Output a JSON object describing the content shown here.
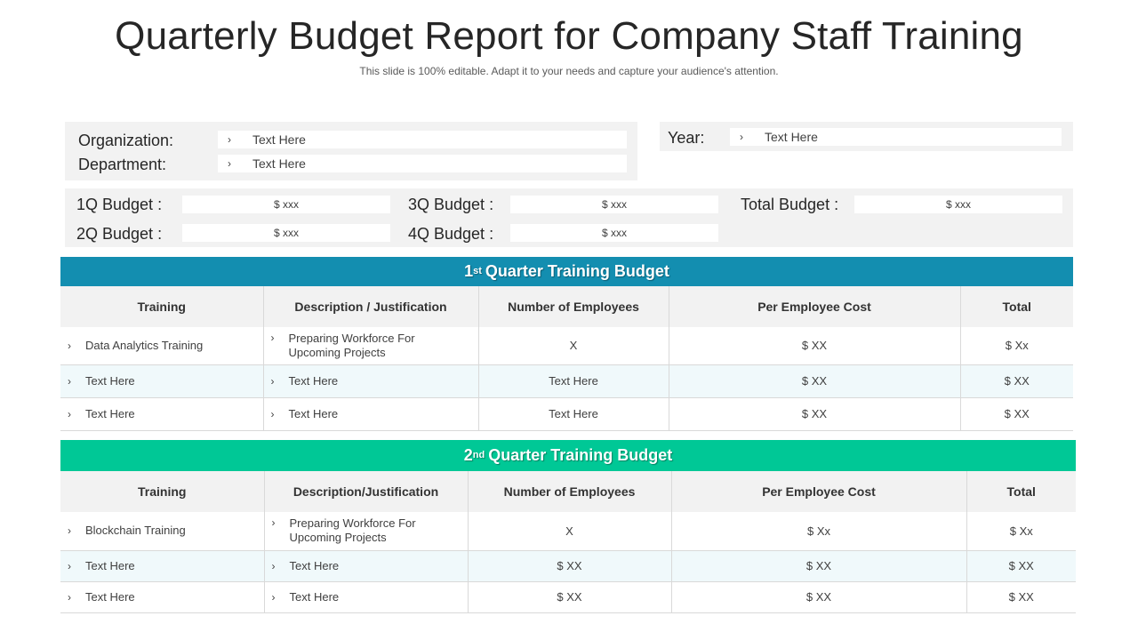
{
  "title": "Quarterly Budget Report for Company Staff Training",
  "subtitle": "This slide is 100% editable. Adapt it to your needs and capture your audience's attention.",
  "chevron": "›",
  "info": {
    "organization_label": "Organization:",
    "organization_value": "Text Here",
    "department_label": "Department:",
    "department_value": "Text Here",
    "year_label": "Year:",
    "year_value": "Text Here"
  },
  "budget": {
    "q1_label": "1Q Budget :",
    "q1_value": "$ xxx",
    "q2_label": "2Q Budget :",
    "q2_value": "$ xxx",
    "q3_label": "3Q Budget :",
    "q3_value": "$ xxx",
    "q4_label": "4Q Budget :",
    "q4_value": "$ xxx",
    "total_label": "Total Budget :",
    "total_value": "$ xxx"
  },
  "colors": {
    "q1_header": "#138eb0",
    "q2_header": "#00c896",
    "panel_bg": "#f2f2f2",
    "alt_row": "#f0f9fb"
  },
  "q1": {
    "header_num": "1",
    "header_sup": "st",
    "header_text": "Quarter Training Budget",
    "columns": [
      "Training",
      "Description / Justification",
      "Number of Employees",
      "Per Employee Cost",
      "Total"
    ],
    "rows": [
      [
        "Data Analytics Training",
        "Preparing Workforce For Upcoming Projects",
        "X",
        "$ XX",
        "$ Xx"
      ],
      [
        "Text Here",
        "Text Here",
        "Text Here",
        "$ XX",
        "$ XX"
      ],
      [
        "Text Here",
        "Text Here",
        "Text Here",
        "$ XX",
        "$ XX"
      ]
    ]
  },
  "q2": {
    "header_num": "2",
    "header_sup": "nd",
    "header_text": "Quarter Training Budget",
    "columns": [
      "Training",
      "Description/Justification",
      "Number of Employees",
      "Per Employee Cost",
      "Total"
    ],
    "rows": [
      [
        "Blockchain Training",
        "Preparing Workforce For Upcoming Projects",
        "X",
        "$ Xx",
        "$ Xx"
      ],
      [
        "Text Here",
        "Text Here",
        "$ XX",
        "$ XX",
        "$ XX"
      ],
      [
        "Text Here",
        "Text Here",
        "$ XX",
        "$ XX",
        "$ XX"
      ]
    ]
  }
}
